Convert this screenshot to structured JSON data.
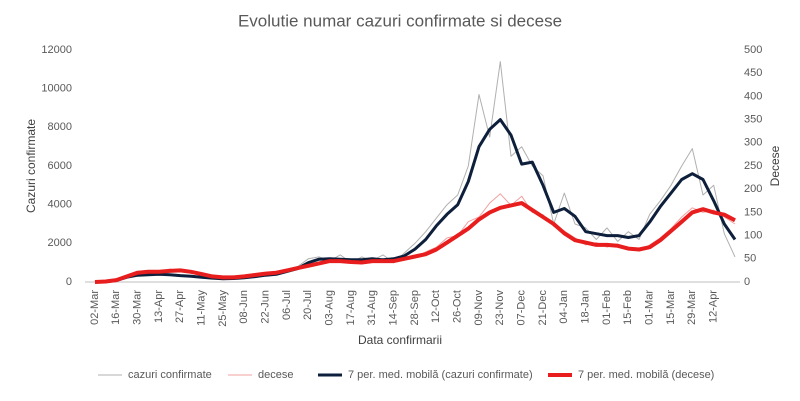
{
  "chart_data": {
    "type": "line",
    "title": "Evolutie numar cazuri confirmate si decese",
    "x_label": "Data confirmarii",
    "y_label": "Cazuri confirmate",
    "y2_label": "Decese",
    "legend": "bottom",
    "categories": [
      "02-Mar",
      null,
      "16-Mar",
      null,
      "30-Mar",
      null,
      "13-Apr",
      null,
      "27-Apr",
      null,
      "11-May",
      null,
      "25-May",
      null,
      "08-Jun",
      null,
      "22-Jun",
      null,
      "06-Jul",
      null,
      "20-Jul",
      null,
      "03-Aug",
      null,
      "17-Aug",
      null,
      "31-Aug",
      null,
      "14-Sep",
      null,
      "28-Sep",
      null,
      "12-Oct",
      null,
      "26-Oct",
      null,
      "09-Nov",
      null,
      "23-Nov",
      null,
      "07-Dec",
      null,
      "21-Dec",
      null,
      "04-Jan",
      null,
      "18-Jan",
      null,
      "01-Feb",
      null,
      "15-Feb",
      null,
      "01-Mar",
      null,
      "15-Mar",
      null,
      "29-Mar",
      null,
      "12-Apr",
      null,
      null
    ],
    "ylim": [
      0,
      12000
    ],
    "yticks": [
      0,
      2000,
      4000,
      6000,
      8000,
      10000,
      12000
    ],
    "y2lim": [
      0,
      500
    ],
    "y2ticks": [
      0,
      50,
      100,
      150,
      200,
      250,
      300,
      350,
      400,
      450,
      500
    ],
    "series": [
      {
        "name": "cazuri confirmate",
        "color": "#b0b0b0",
        "width": 1,
        "values": [
          0,
          30,
          150,
          300,
          400,
          350,
          450,
          350,
          300,
          350,
          200,
          180,
          150,
          200,
          250,
          300,
          400,
          350,
          650,
          800,
          1200,
          1300,
          1100,
          1400,
          1000,
          1300,
          1100,
          1400,
          1000,
          1500,
          2000,
          2600,
          3300,
          4000,
          4500,
          6000,
          9700,
          7500,
          11400,
          6500,
          7000,
          6000,
          5500,
          3000,
          4600,
          3000,
          2800,
          2200,
          2800,
          2100,
          2600,
          2200,
          3500,
          4200,
          5000,
          6000,
          6900,
          4500,
          5000,
          2500,
          1300
        ]
      },
      {
        "name": "decese",
        "color": "#f2a0a0",
        "width": 1,
        "axis": "y2",
        "values": [
          0,
          2,
          6,
          15,
          22,
          25,
          20,
          28,
          24,
          20,
          18,
          12,
          10,
          12,
          11,
          18,
          17,
          22,
          28,
          32,
          40,
          38,
          50,
          42,
          48,
          40,
          50,
          45,
          44,
          55,
          52,
          65,
          75,
          95,
          100,
          130,
          140,
          170,
          190,
          165,
          185,
          150,
          145,
          120,
          110,
          95,
          80,
          85,
          75,
          82,
          70,
          68,
          80,
          95,
          115,
          140,
          160,
          150,
          155,
          140,
          125
        ]
      },
      {
        "name": "7 per. med. mobilă (cazuri confirmate)",
        "color": "#0e1f3b",
        "width": 3,
        "values": [
          0,
          20,
          80,
          250,
          350,
          380,
          400,
          380,
          330,
          300,
          250,
          200,
          170,
          180,
          220,
          280,
          350,
          400,
          550,
          700,
          1000,
          1180,
          1200,
          1180,
          1150,
          1150,
          1200,
          1150,
          1200,
          1350,
          1700,
          2200,
          2900,
          3500,
          4000,
          5200,
          7000,
          7900,
          8400,
          7600,
          6100,
          6200,
          5000,
          3600,
          3800,
          3400,
          2600,
          2500,
          2400,
          2400,
          2300,
          2400,
          3100,
          3900,
          4600,
          5300,
          5600,
          5300,
          4200,
          3000,
          2200
        ]
      },
      {
        "name": "7 per. med. mobilă (decese)",
        "color": "#e81d1d",
        "width": 4,
        "axis": "y2",
        "values": [
          0,
          1,
          4,
          12,
          20,
          22,
          22,
          24,
          25,
          22,
          17,
          12,
          10,
          10,
          12,
          15,
          18,
          20,
          25,
          30,
          35,
          40,
          45,
          45,
          43,
          42,
          45,
          45,
          45,
          50,
          55,
          60,
          70,
          85,
          100,
          115,
          135,
          150,
          160,
          165,
          170,
          155,
          140,
          125,
          105,
          90,
          85,
          80,
          80,
          78,
          72,
          70,
          75,
          90,
          110,
          130,
          150,
          157,
          150,
          145,
          133
        ]
      }
    ]
  }
}
